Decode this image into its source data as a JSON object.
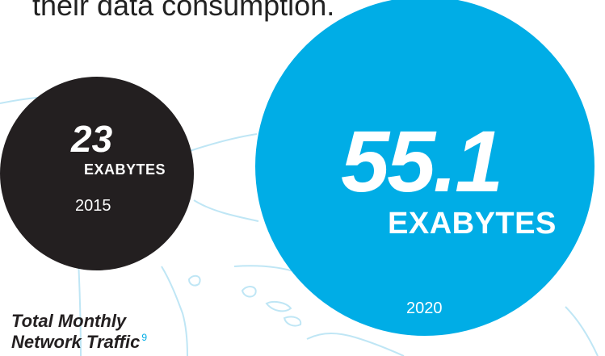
{
  "headline": "their data consumption.",
  "chart_data": {
    "type": "bubble",
    "title": "Total Monthly Network Traffic",
    "footnote": "9",
    "unit": "EXABYTES",
    "points": [
      {
        "year": "2015",
        "value": 23,
        "label": "23",
        "color": "#231f20"
      },
      {
        "year": "2020",
        "value": 55.1,
        "label": "55.1",
        "color": "#00ade6"
      }
    ]
  },
  "caption": {
    "line1": "Total Monthly",
    "line2": "Network Traffic",
    "footnote": "9"
  }
}
